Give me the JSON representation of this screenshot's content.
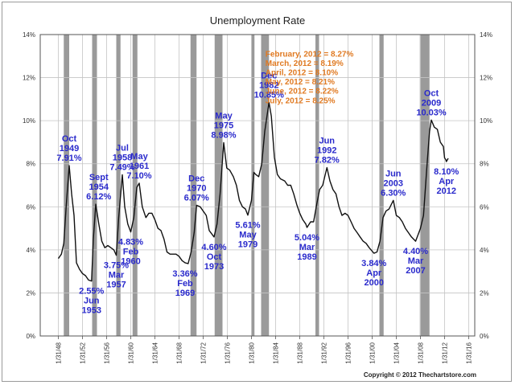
{
  "chart_data": {
    "type": "line",
    "title": "Unemployment Rate",
    "xlabel": "",
    "ylabel": "",
    "xlim": [
      1945,
      2017
    ],
    "ylim": [
      0,
      14
    ],
    "y_tick_labels": [
      "0%",
      "2%",
      "4%",
      "6%",
      "8%",
      "10%",
      "12%",
      "14%"
    ],
    "x_tick_labels": [
      "1/31/48",
      "1/31/52",
      "1/31/56",
      "1/31/60",
      "1/31/64",
      "1/31/68",
      "1/31/72",
      "1/31/76",
      "1/31/80",
      "1/31/84",
      "1/31/88",
      "1/31/92",
      "1/31/96",
      "1/31/00",
      "1/31/04",
      "1/31/08",
      "1/31/12",
      "1/31/16"
    ],
    "grid": true,
    "colors": {
      "line": "#111111",
      "recession": "#9a9a9a",
      "annotation": "#2a2acc",
      "note": "#e07a22"
    },
    "recessions": [
      [
        1948.9,
        1949.8
      ],
      [
        1953.6,
        1954.4
      ],
      [
        1957.6,
        1958.3
      ],
      [
        1960.3,
        1961.1
      ],
      [
        1969.9,
        1970.9
      ],
      [
        1973.9,
        1975.2
      ],
      [
        1980.0,
        1980.5
      ],
      [
        1981.6,
        1982.9
      ],
      [
        1990.6,
        1991.2
      ],
      [
        2001.2,
        2001.9
      ],
      [
        2007.9,
        2009.5
      ]
    ],
    "series": [
      {
        "x": [
          1948.0,
          1948.5,
          1948.9,
          1949.3,
          1949.8,
          1950.2,
          1950.6,
          1951.0,
          1951.5,
          1952.0,
          1952.5,
          1953.0,
          1953.5,
          1953.8,
          1954.2,
          1954.7,
          1955.2,
          1955.7,
          1956.2,
          1956.7,
          1957.2,
          1957.6,
          1958.0,
          1958.6,
          1959.0,
          1959.5,
          1960.0,
          1960.5,
          1961.0,
          1961.4,
          1961.9,
          1962.5,
          1963.0,
          1963.5,
          1964.0,
          1964.5,
          1965.0,
          1965.5,
          1966.0,
          1966.5,
          1967.0,
          1967.5,
          1968.0,
          1968.5,
          1969.0,
          1969.5,
          1970.0,
          1970.5,
          1970.9,
          1971.5,
          1972.0,
          1972.5,
          1973.0,
          1973.8,
          1974.3,
          1974.8,
          1975.4,
          1975.9,
          1976.4,
          1977.0,
          1977.5,
          1978.0,
          1978.5,
          1979.0,
          1979.4,
          1980.0,
          1980.4,
          1980.7,
          1981.2,
          1981.7,
          1982.2,
          1982.9,
          1983.3,
          1983.8,
          1984.3,
          1984.8,
          1985.5,
          1986.0,
          1986.5,
          1987.0,
          1987.5,
          1988.0,
          1988.5,
          1989.0,
          1989.2,
          1989.8,
          1990.3,
          1990.8,
          1991.3,
          1991.8,
          1992.5,
          1993.0,
          1993.5,
          1994.0,
          1994.5,
          1995.0,
          1995.5,
          1996.0,
          1996.5,
          1997.0,
          1997.5,
          1998.0,
          1998.5,
          1999.0,
          1999.5,
          2000.3,
          2000.8,
          2001.3,
          2001.8,
          2002.3,
          2002.8,
          2003.5,
          2004.0,
          2004.5,
          2005.0,
          2005.5,
          2006.0,
          2006.5,
          2007.2,
          2007.6,
          2008.0,
          2008.5,
          2009.0,
          2009.5,
          2009.8,
          2010.3,
          2010.8,
          2011.3,
          2011.8,
          2012.0,
          2012.2,
          2012.3,
          2012.6
        ],
        "y": [
          3.6,
          3.8,
          4.3,
          6.0,
          7.91,
          6.6,
          5.6,
          3.4,
          3.1,
          2.9,
          2.8,
          2.6,
          2.55,
          4.5,
          6.12,
          5.2,
          4.4,
          4.1,
          4.2,
          4.1,
          4.0,
          3.75,
          5.5,
          7.49,
          6.0,
          5.2,
          4.83,
          5.5,
          6.9,
          7.1,
          6.0,
          5.5,
          5.7,
          5.7,
          5.4,
          5.0,
          4.9,
          4.5,
          3.9,
          3.8,
          3.8,
          3.8,
          3.7,
          3.5,
          3.4,
          3.36,
          3.9,
          4.8,
          6.07,
          6.0,
          5.8,
          5.6,
          4.9,
          4.6,
          5.2,
          6.6,
          8.98,
          7.8,
          7.7,
          7.4,
          7.0,
          6.3,
          6.0,
          5.9,
          5.61,
          6.3,
          7.6,
          7.5,
          7.4,
          8.0,
          9.5,
          10.85,
          10.2,
          8.3,
          7.5,
          7.3,
          7.2,
          7.0,
          7.0,
          6.6,
          6.1,
          5.7,
          5.4,
          5.2,
          5.04,
          5.3,
          5.3,
          6.1,
          6.8,
          7.0,
          7.82,
          7.2,
          6.8,
          6.6,
          6.0,
          5.6,
          5.7,
          5.6,
          5.3,
          5.0,
          4.8,
          4.6,
          4.4,
          4.3,
          4.1,
          3.84,
          3.9,
          4.4,
          5.5,
          5.8,
          5.9,
          6.3,
          5.6,
          5.5,
          5.3,
          5.0,
          4.8,
          4.6,
          4.4,
          4.7,
          5.0,
          5.6,
          7.6,
          9.5,
          10.03,
          9.7,
          9.6,
          9.0,
          8.8,
          8.27,
          8.19,
          8.1,
          8.25
        ]
      }
    ],
    "annotations": [
      {
        "x": 1949.8,
        "y": 7.91,
        "lines": [
          "Oct",
          "1949",
          "7.91%"
        ]
      },
      {
        "x": 1953.5,
        "y": 2.55,
        "lines": [
          "2.55%",
          "Jun",
          "1953"
        ]
      },
      {
        "x": 1954.7,
        "y": 6.12,
        "lines": [
          "Sept",
          "1954",
          "6.12%"
        ]
      },
      {
        "x": 1957.6,
        "y": 3.75,
        "lines": [
          "3.75%",
          "Mar",
          "1957"
        ]
      },
      {
        "x": 1958.6,
        "y": 7.49,
        "lines": [
          "Jul",
          "1958",
          "7.49%"
        ]
      },
      {
        "x": 1960.0,
        "y": 4.83,
        "lines": [
          "4.83%",
          "Feb",
          "1960"
        ]
      },
      {
        "x": 1961.4,
        "y": 7.1,
        "lines": [
          "May",
          "1961",
          "7.10%"
        ]
      },
      {
        "x": 1969.0,
        "y": 3.36,
        "lines": [
          "3.36%",
          "Feb",
          "1969"
        ]
      },
      {
        "x": 1970.9,
        "y": 6.07,
        "lines": [
          "Dec",
          "1970",
          "6.07%"
        ]
      },
      {
        "x": 1973.8,
        "y": 4.6,
        "lines": [
          "4.60%",
          "Oct",
          "1973"
        ]
      },
      {
        "x": 1975.4,
        "y": 8.98,
        "lines": [
          "May",
          "1975",
          "8.98%"
        ]
      },
      {
        "x": 1979.4,
        "y": 5.61,
        "lines": [
          "5.61%",
          "May",
          "1979"
        ]
      },
      {
        "x": 1982.9,
        "y": 10.85,
        "lines": [
          "Dec",
          "1982",
          "10.85%"
        ]
      },
      {
        "x": 1989.2,
        "y": 5.04,
        "lines": [
          "5.04%",
          "Mar",
          "1989"
        ]
      },
      {
        "x": 1992.5,
        "y": 7.82,
        "lines": [
          "Jun",
          "1992",
          "7.82%"
        ]
      },
      {
        "x": 2000.3,
        "y": 3.84,
        "lines": [
          "3.84%",
          "Apr",
          "2000"
        ]
      },
      {
        "x": 2003.5,
        "y": 6.3,
        "lines": [
          "Jun",
          "2003",
          "6.30%"
        ]
      },
      {
        "x": 2007.2,
        "y": 4.4,
        "lines": [
          "4.40%",
          "Mar",
          "2007"
        ]
      },
      {
        "x": 2009.8,
        "y": 10.03,
        "lines": [
          "Oct",
          "2009",
          "10.03%"
        ]
      },
      {
        "x": 2012.3,
        "y": 8.1,
        "lines": [
          "8.10%",
          "Apr",
          "2012"
        ]
      }
    ],
    "notes": [
      "February, 2012 = 8.27%",
      "March, 2012 = 8.19%",
      "April, 2012 = 8.10%",
      "May, 2012 = 8.21%",
      "June, 2012 = 8.22%",
      "July, 2012 = 8.25%"
    ]
  },
  "copyright": "Copyright © 2012 Thechartstore.com"
}
